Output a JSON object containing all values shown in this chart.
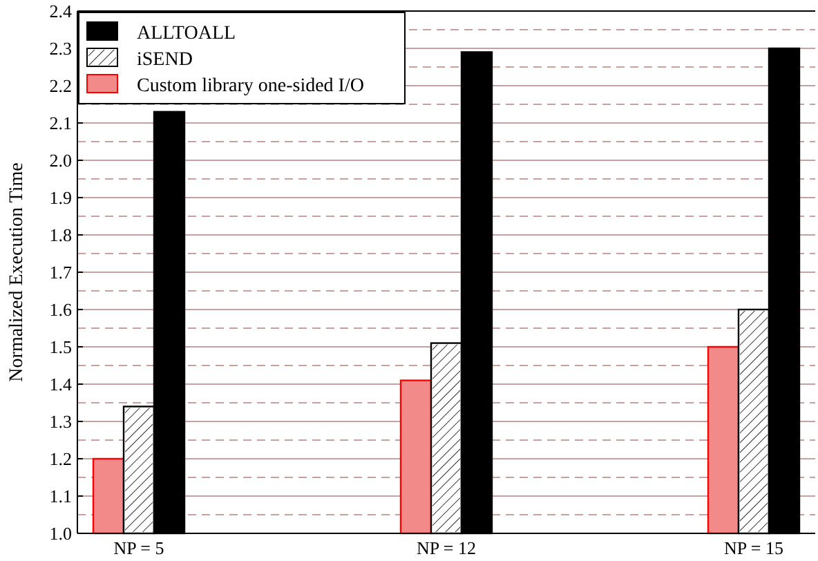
{
  "chart_data": {
    "type": "bar",
    "ylabel": "Normalized Execution Time",
    "categories": [
      "NP = 5",
      "NP = 12",
      "NP = 15"
    ],
    "series": [
      {
        "name": "Custom library one-sided I/O",
        "color": "#f38a8a",
        "values": [
          1.2,
          1.41,
          1.5
        ]
      },
      {
        "name": "iSEND",
        "color": "#ffffff",
        "values": [
          1.34,
          1.51,
          1.6
        ]
      },
      {
        "name": "ALLTOALL",
        "color": "#000000",
        "values": [
          2.13,
          2.29,
          2.3
        ]
      }
    ],
    "ylim": [
      1.0,
      2.4
    ],
    "yticks": [
      {
        "value": 1,
        "label": "1.0"
      },
      1.1,
      1.2,
      1.3,
      1.4,
      1.5,
      1.6,
      1.7,
      1.8,
      1.9,
      {
        "value": 2,
        "label": "2.0"
      },
      2.1,
      2.2,
      2.3,
      2.4
    ],
    "grid": "y",
    "legend": "top left"
  }
}
